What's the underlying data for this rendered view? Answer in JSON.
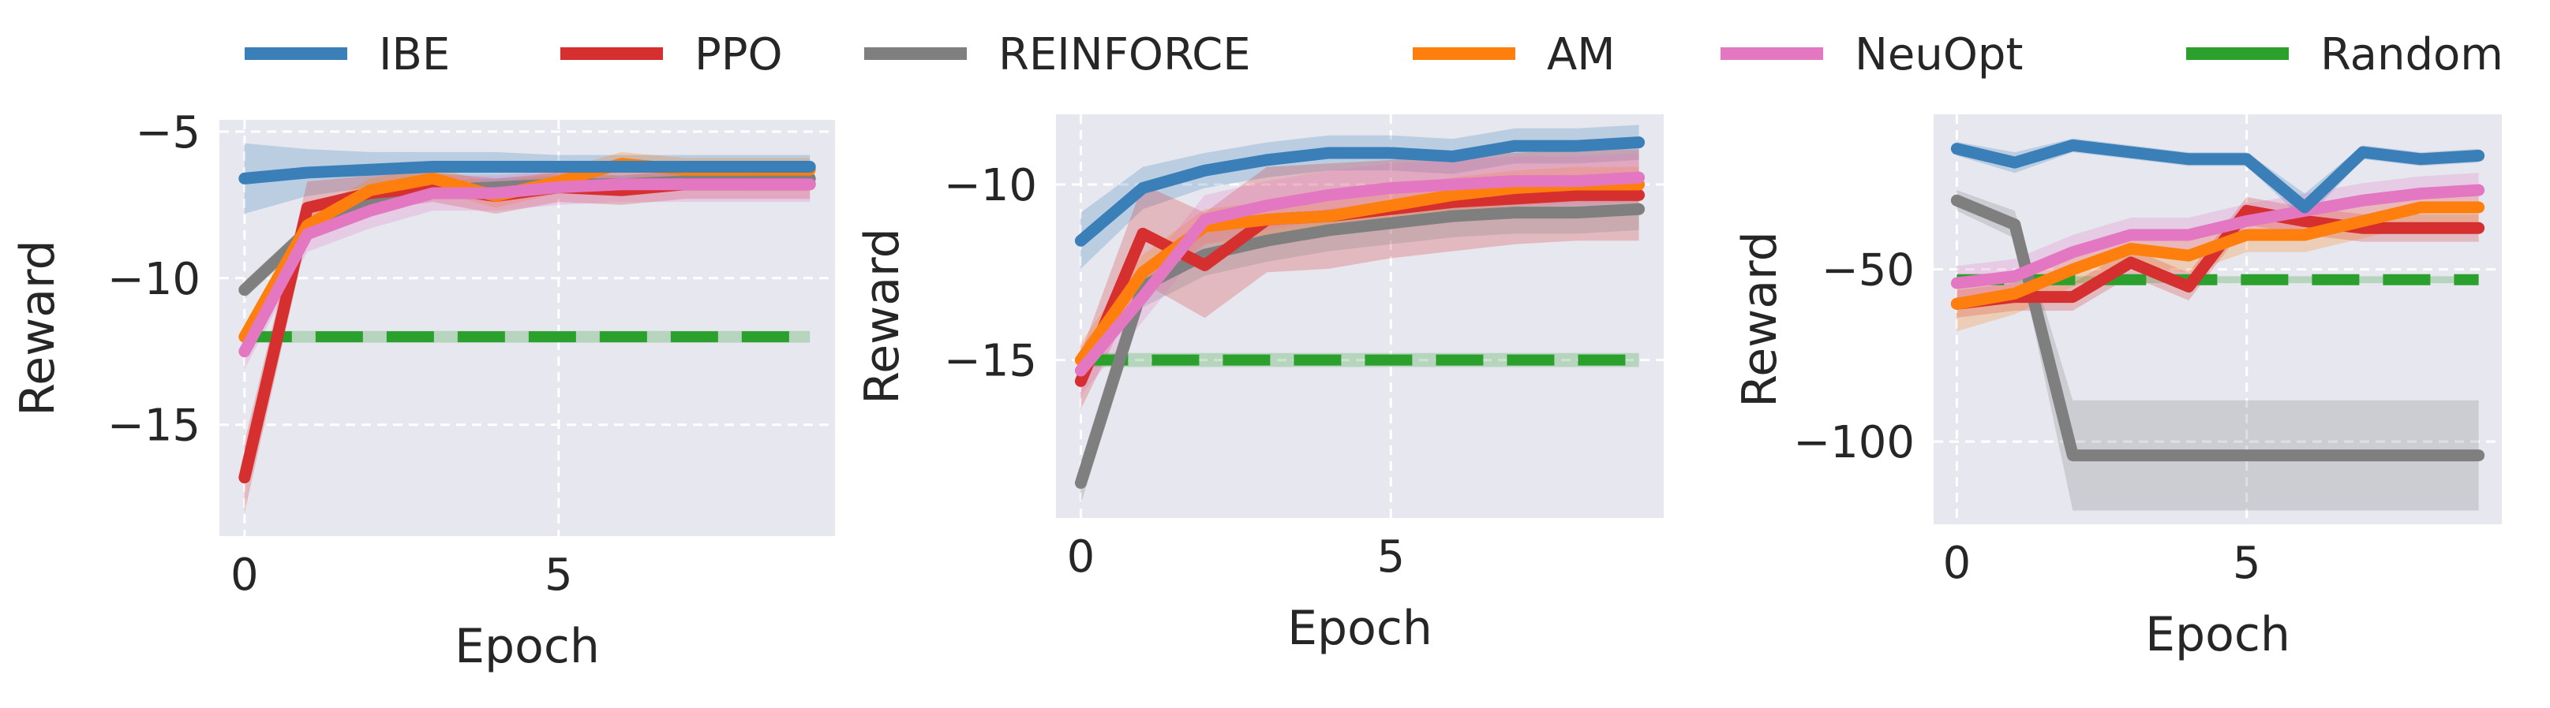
{
  "figure": {
    "legend": [
      {
        "name": "IBE",
        "color": "#3b7fb9"
      },
      {
        "name": "PPO",
        "color": "#d62f2f"
      },
      {
        "name": "REINFORCE",
        "color": "#7f7f7f"
      },
      {
        "name": "AM",
        "color": "#ff7f0e"
      },
      {
        "name": "NeuOpt",
        "color": "#e377c2"
      },
      {
        "name": "Random",
        "color": "#2ca02c"
      }
    ],
    "background": "#e6e7ef",
    "grid_color": "#ffffff"
  },
  "chart_data": [
    {
      "type": "line",
      "xlabel": "Epoch",
      "ylabel": "Reward",
      "xlim": [
        -0.4,
        9.4
      ],
      "ylim": [
        -18.8,
        -4.6
      ],
      "xticks": [
        0,
        5
      ],
      "yticks": [
        -5,
        -10,
        -15
      ],
      "ytick_labels": [
        "−5",
        "−10",
        "−15"
      ],
      "xtick_labels": [
        "0",
        "5"
      ],
      "grid": true,
      "series": [
        {
          "name": "IBE",
          "color": "#3b7fb9",
          "x": [
            0,
            1,
            2,
            3,
            4,
            5,
            6,
            7,
            8,
            9
          ],
          "y": [
            -6.6,
            -6.4,
            -6.3,
            -6.2,
            -6.2,
            -6.2,
            -6.2,
            -6.2,
            -6.2,
            -6.2
          ],
          "band": [
            1.2,
            0.8,
            0.6,
            0.5,
            0.5,
            0.4,
            0.4,
            0.4,
            0.4,
            0.4
          ]
        },
        {
          "name": "PPO",
          "color": "#d62f2f",
          "x": [
            0,
            1,
            2,
            3,
            4,
            5,
            6,
            7,
            8,
            9
          ],
          "y": [
            -16.8,
            -7.6,
            -7.1,
            -6.9,
            -7.2,
            -6.9,
            -7.0,
            -6.8,
            -6.8,
            -6.8
          ],
          "band": [
            1.2,
            0.9,
            0.6,
            0.5,
            0.6,
            0.5,
            0.5,
            0.5,
            0.5,
            0.5
          ]
        },
        {
          "name": "REINFORCE",
          "color": "#7f7f7f",
          "x": [
            0,
            1,
            2,
            3,
            4,
            5,
            6,
            7,
            8,
            9
          ],
          "y": [
            -10.4,
            -8.4,
            -7.3,
            -7.0,
            -6.9,
            -6.8,
            -6.8,
            -6.7,
            -6.7,
            -6.6
          ],
          "band": [
            0.3,
            0.3,
            0.3,
            0.3,
            0.3,
            0.3,
            0.3,
            0.3,
            0.3,
            0.3
          ]
        },
        {
          "name": "AM",
          "color": "#ff7f0e",
          "x": [
            0,
            1,
            2,
            3,
            4,
            5,
            6,
            7,
            8,
            9
          ],
          "y": [
            -12.0,
            -8.2,
            -7.0,
            -6.6,
            -7.2,
            -6.7,
            -6.1,
            -6.3,
            -6.3,
            -6.3
          ],
          "band": [
            0.4,
            0.4,
            0.4,
            0.4,
            0.4,
            0.4,
            0.4,
            0.4,
            0.4,
            0.4
          ]
        },
        {
          "name": "NeuOpt",
          "color": "#e377c2",
          "x": [
            0,
            1,
            2,
            3,
            4,
            5,
            6,
            7,
            8,
            9
          ],
          "y": [
            -12.5,
            -8.5,
            -7.7,
            -7.1,
            -7.1,
            -6.9,
            -6.8,
            -6.8,
            -6.8,
            -6.8
          ],
          "band": [
            0.6,
            0.6,
            0.6,
            0.6,
            0.6,
            0.6,
            0.6,
            0.6,
            0.6,
            0.6
          ]
        },
        {
          "name": "Random",
          "color": "#2ca02c",
          "dashed": true,
          "x": [
            0,
            9
          ],
          "y": [
            -12.0,
            -12.0
          ],
          "band": [
            0.2,
            0.2
          ]
        }
      ]
    },
    {
      "type": "line",
      "xlabel": "Epoch",
      "ylabel": "Reward",
      "xlim": [
        -0.4,
        9.4
      ],
      "ylim": [
        -19.5,
        -8.0
      ],
      "xticks": [
        0,
        5
      ],
      "yticks": [
        -10,
        -15
      ],
      "ytick_labels": [
        "−10",
        "−15"
      ],
      "xtick_labels": [
        "0",
        "5"
      ],
      "grid": true,
      "series": [
        {
          "name": "IBE",
          "color": "#3b7fb9",
          "x": [
            0,
            1,
            2,
            3,
            4,
            5,
            6,
            7,
            8,
            9
          ],
          "y": [
            -11.6,
            -10.1,
            -9.6,
            -9.3,
            -9.1,
            -9.1,
            -9.2,
            -8.9,
            -8.9,
            -8.8
          ],
          "band": [
            0.8,
            0.6,
            0.5,
            0.5,
            0.5,
            0.5,
            0.5,
            0.5,
            0.5,
            0.5
          ]
        },
        {
          "name": "PPO",
          "color": "#d62f2f",
          "x": [
            0,
            1,
            2,
            3,
            4,
            5,
            6,
            7,
            8,
            9
          ],
          "y": [
            -15.6,
            -11.4,
            -12.3,
            -11.0,
            -10.9,
            -10.7,
            -10.5,
            -10.4,
            -10.3,
            -10.3
          ],
          "band": [
            0.8,
            1.4,
            1.5,
            1.5,
            1.5,
            1.4,
            1.4,
            1.3,
            1.3,
            1.3
          ]
        },
        {
          "name": "REINFORCE",
          "color": "#7f7f7f",
          "x": [
            0,
            1,
            2,
            3,
            4,
            5,
            6,
            7,
            8,
            9
          ],
          "y": [
            -18.5,
            -12.9,
            -12.0,
            -11.6,
            -11.3,
            -11.1,
            -10.9,
            -10.8,
            -10.8,
            -10.7
          ],
          "band": [
            0.6,
            0.6,
            0.6,
            0.6,
            0.6,
            0.6,
            0.6,
            0.6,
            0.6,
            0.6
          ]
        },
        {
          "name": "AM",
          "color": "#ff7f0e",
          "x": [
            0,
            1,
            2,
            3,
            4,
            5,
            6,
            7,
            8,
            9
          ],
          "y": [
            -15.0,
            -12.5,
            -11.2,
            -11.0,
            -10.9,
            -10.6,
            -10.3,
            -10.1,
            -10.0,
            -10.0
          ],
          "band": [
            0.5,
            0.5,
            0.5,
            0.5,
            0.5,
            0.5,
            0.5,
            0.5,
            0.5,
            0.5
          ]
        },
        {
          "name": "NeuOpt",
          "color": "#e377c2",
          "x": [
            0,
            1,
            2,
            3,
            4,
            5,
            6,
            7,
            8,
            9
          ],
          "y": [
            -15.3,
            -13.2,
            -11.0,
            -10.6,
            -10.3,
            -10.1,
            -10.0,
            -9.9,
            -9.9,
            -9.8
          ],
          "band": [
            0.7,
            0.7,
            0.7,
            0.7,
            0.7,
            0.7,
            0.7,
            0.7,
            0.7,
            0.7
          ]
        },
        {
          "name": "Random",
          "color": "#2ca02c",
          "dashed": true,
          "x": [
            0,
            9
          ],
          "y": [
            -15.0,
            -15.0
          ],
          "band": [
            0.2,
            0.2
          ]
        }
      ]
    },
    {
      "type": "line",
      "xlabel": "Epoch",
      "ylabel": "Reward",
      "xlim": [
        -0.4,
        9.4
      ],
      "ylim": [
        -124,
        -5
      ],
      "xticks": [
        0,
        5
      ],
      "yticks": [
        -50,
        -100
      ],
      "ytick_labels": [
        "−50",
        "−100"
      ],
      "xtick_labels": [
        "0",
        "5"
      ],
      "grid": true,
      "series": [
        {
          "name": "IBE",
          "color": "#3b7fb9",
          "x": [
            0,
            1,
            2,
            3,
            4,
            5,
            6,
            7,
            8,
            9
          ],
          "y": [
            -15,
            -19,
            -14,
            -16,
            -18,
            -18,
            -32,
            -16,
            -18,
            -17
          ],
          "band": [
            2,
            3,
            2,
            2,
            2,
            2,
            4,
            2,
            2,
            2
          ]
        },
        {
          "name": "PPO",
          "color": "#d62f2f",
          "x": [
            0,
            1,
            2,
            3,
            4,
            5,
            6,
            7,
            8,
            9
          ],
          "y": [
            -60,
            -58,
            -58,
            -48,
            -55,
            -33,
            -36,
            -38,
            -38,
            -38
          ],
          "band": [
            4,
            4,
            4,
            4,
            4,
            4,
            4,
            4,
            4,
            4
          ]
        },
        {
          "name": "REINFORCE",
          "color": "#7f7f7f",
          "x": [
            0,
            1,
            2,
            3,
            4,
            5,
            6,
            7,
            8,
            9
          ],
          "y": [
            -30,
            -37,
            -104,
            -104,
            -104,
            -104,
            -104,
            -104,
            -104,
            -104
          ],
          "band": [
            3,
            4,
            16,
            16,
            16,
            16,
            16,
            16,
            16,
            16
          ]
        },
        {
          "name": "AM",
          "color": "#ff7f0e",
          "x": [
            0,
            1,
            2,
            3,
            4,
            5,
            6,
            7,
            8,
            9
          ],
          "y": [
            -60,
            -57,
            -50,
            -44,
            -46,
            -40,
            -40,
            -36,
            -32,
            -32
          ],
          "band": [
            8,
            6,
            5,
            5,
            5,
            5,
            5,
            5,
            5,
            5
          ]
        },
        {
          "name": "NeuOpt",
          "color": "#e377c2",
          "x": [
            0,
            1,
            2,
            3,
            4,
            5,
            6,
            7,
            8,
            9
          ],
          "y": [
            -54,
            -52,
            -45,
            -40,
            -40,
            -36,
            -33,
            -30,
            -28,
            -27
          ],
          "band": [
            5,
            5,
            5,
            5,
            5,
            5,
            5,
            5,
            5,
            5
          ]
        },
        {
          "name": "Random",
          "color": "#2ca02c",
          "dashed": true,
          "x": [
            0,
            9
          ],
          "y": [
            -53,
            -53
          ],
          "band": [
            1,
            1
          ]
        }
      ]
    }
  ]
}
